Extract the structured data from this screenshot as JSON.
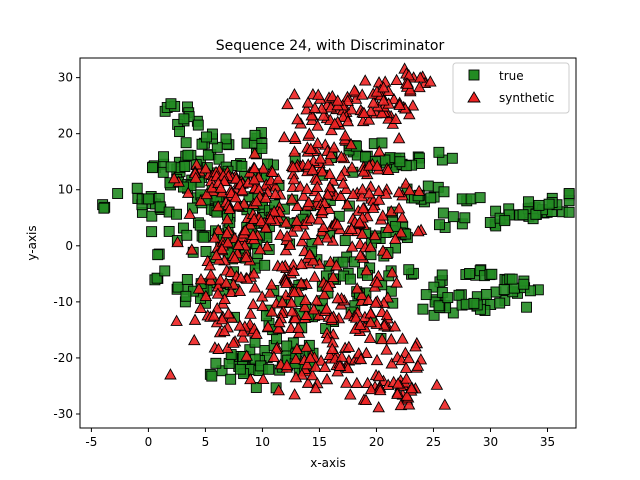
{
  "chart_data": {
    "type": "scatter",
    "title": "Sequence 24, with Discriminator",
    "xlabel": "x-axis",
    "ylabel": "y-axis",
    "xlim": [
      -6,
      37.5
    ],
    "ylim": [
      -32.5,
      33.5
    ],
    "xticks": [
      -5,
      0,
      5,
      10,
      15,
      20,
      25,
      30,
      35
    ],
    "yticks": [
      -30,
      -20,
      -10,
      0,
      10,
      20,
      30
    ],
    "grid": false,
    "legend_position": "top-right",
    "series": [
      {
        "name": "true",
        "marker": "square",
        "color": "#228b22",
        "edge_color": "#000000",
        "clusters": [
          {
            "cx": -3.8,
            "cy": 6.8,
            "sx": 0.2,
            "sy": 0.3,
            "n": 3
          },
          {
            "cx": -0.5,
            "cy": 8.5,
            "sx": 0.8,
            "sy": 1.5,
            "n": 10
          },
          {
            "cx": 0.5,
            "cy": 13.8,
            "sx": 0.3,
            "sy": 0.3,
            "n": 4
          },
          {
            "cx": 1.0,
            "cy": -1.5,
            "sx": 0.3,
            "sy": 0.3,
            "n": 2
          },
          {
            "cx": 0.8,
            "cy": -6.5,
            "sx": 0.3,
            "sy": 0.4,
            "n": 3
          },
          {
            "cx": 2.0,
            "cy": 24.7,
            "sx": 0.5,
            "sy": 0.4,
            "n": 6
          },
          {
            "cx": 3.5,
            "cy": 23.0,
            "sx": 0.6,
            "sy": 0.8,
            "n": 6
          },
          {
            "cx": 2.5,
            "cy": 14.0,
            "sx": 1.0,
            "sy": 1.0,
            "n": 8
          },
          {
            "cx": 3.5,
            "cy": -8.0,
            "sx": 1.2,
            "sy": 0.8,
            "n": 14
          },
          {
            "cx": 5.5,
            "cy": 10.5,
            "sx": 2.5,
            "sy": 5.0,
            "n": 70
          },
          {
            "cx": 7.0,
            "cy": 2.5,
            "sx": 2.5,
            "sy": 4.0,
            "n": 60
          },
          {
            "cx": 5.5,
            "cy": 19.0,
            "sx": 1.0,
            "sy": 1.0,
            "n": 8
          },
          {
            "cx": 9.5,
            "cy": 19.0,
            "sx": 0.6,
            "sy": 1.5,
            "n": 8
          },
          {
            "cx": 8.5,
            "cy": -22.0,
            "sx": 2.5,
            "sy": 1.5,
            "n": 35
          },
          {
            "cx": 12.0,
            "cy": -20.5,
            "sx": 2.0,
            "sy": 2.0,
            "n": 25
          },
          {
            "cx": 12.0,
            "cy": -10.5,
            "sx": 2.5,
            "sy": 3.5,
            "n": 25
          },
          {
            "cx": 14.0,
            "cy": 5.0,
            "sx": 2.0,
            "sy": 4.0,
            "n": 20
          },
          {
            "cx": 16.5,
            "cy": -5.0,
            "sx": 1.2,
            "sy": 3.0,
            "n": 15
          },
          {
            "cx": 18.0,
            "cy": 17.0,
            "sx": 1.2,
            "sy": 1.2,
            "n": 10
          },
          {
            "cx": 19.5,
            "cy": -8.0,
            "sx": 1.5,
            "sy": 3.5,
            "n": 15
          },
          {
            "cx": 21.0,
            "cy": 1.5,
            "sx": 1.5,
            "sy": 3.0,
            "n": 20
          },
          {
            "cx": 22.0,
            "cy": 15.0,
            "sx": 2.0,
            "sy": 0.8,
            "n": 25
          },
          {
            "cx": 24.5,
            "cy": 9.0,
            "sx": 0.8,
            "sy": 1.2,
            "n": 12
          },
          {
            "cx": 26.0,
            "cy": 4.0,
            "sx": 0.8,
            "sy": 0.8,
            "n": 6
          },
          {
            "cx": 23.0,
            "cy": -5.0,
            "sx": 0.8,
            "sy": 0.6,
            "n": 4
          },
          {
            "cx": 26.0,
            "cy": -6.0,
            "sx": 0.6,
            "sy": 0.8,
            "n": 4
          },
          {
            "cx": 26.0,
            "cy": -10.0,
            "sx": 1.5,
            "sy": 1.5,
            "n": 15
          },
          {
            "cx": 29.5,
            "cy": -10.5,
            "sx": 1.5,
            "sy": 0.8,
            "n": 15
          },
          {
            "cx": 28.5,
            "cy": 8.2,
            "sx": 0.7,
            "sy": 0.4,
            "n": 4
          },
          {
            "cx": 28.0,
            "cy": -5.0,
            "sx": 0.8,
            "sy": 0.4,
            "n": 5
          },
          {
            "cx": 30.5,
            "cy": -5.5,
            "sx": 0.8,
            "sy": 0.6,
            "n": 6
          },
          {
            "cx": 32.5,
            "cy": -7.5,
            "sx": 0.8,
            "sy": 0.8,
            "n": 10
          },
          {
            "cx": 30.5,
            "cy": 4.0,
            "sx": 0.4,
            "sy": 0.3,
            "n": 3
          },
          {
            "cx": 33.0,
            "cy": 6.0,
            "sx": 1.5,
            "sy": 0.8,
            "n": 25
          },
          {
            "cx": 35.5,
            "cy": 8.0,
            "sx": 1.0,
            "sy": 0.8,
            "n": 10
          }
        ]
      },
      {
        "name": "synthetic",
        "marker": "triangle",
        "color": "#ee2222",
        "edge_color": "#000000",
        "clusters": [
          {
            "cx": 6.0,
            "cy": 12.0,
            "sx": 1.5,
            "sy": 1.5,
            "n": 25
          },
          {
            "cx": 9.0,
            "cy": 10.0,
            "sx": 2.0,
            "sy": 3.5,
            "n": 55
          },
          {
            "cx": 6.5,
            "cy": -3.0,
            "sx": 2.0,
            "sy": 4.0,
            "n": 45
          },
          {
            "cx": 8.0,
            "cy": -13.0,
            "sx": 2.5,
            "sy": 4.0,
            "n": 55
          },
          {
            "cx": 11.5,
            "cy": 3.0,
            "sx": 2.5,
            "sy": 5.0,
            "n": 65
          },
          {
            "cx": 14.5,
            "cy": 15.0,
            "sx": 2.0,
            "sy": 4.0,
            "n": 55
          },
          {
            "cx": 15.5,
            "cy": 24.0,
            "sx": 1.8,
            "sy": 2.0,
            "n": 40
          },
          {
            "cx": 16.5,
            "cy": 3.0,
            "sx": 2.5,
            "sy": 5.0,
            "n": 60
          },
          {
            "cx": 14.0,
            "cy": -10.0,
            "sx": 2.5,
            "sy": 4.0,
            "n": 55
          },
          {
            "cx": 16.0,
            "cy": -22.0,
            "sx": 2.5,
            "sy": 2.5,
            "n": 55
          },
          {
            "cx": 20.5,
            "cy": 25.5,
            "sx": 1.5,
            "sy": 2.5,
            "n": 45
          },
          {
            "cx": 20.0,
            "cy": 8.0,
            "sx": 1.5,
            "sy": 4.0,
            "n": 35
          },
          {
            "cx": 20.0,
            "cy": -12.0,
            "sx": 1.5,
            "sy": 4.0,
            "n": 35
          },
          {
            "cx": 21.5,
            "cy": -26.0,
            "sx": 1.5,
            "sy": 2.0,
            "n": 35
          },
          {
            "cx": 23.0,
            "cy": 29.0,
            "sx": 0.8,
            "sy": 0.8,
            "n": 12
          },
          {
            "cx": 23.0,
            "cy": -20.0,
            "sx": 0.8,
            "sy": 1.5,
            "n": 10
          }
        ]
      }
    ]
  }
}
